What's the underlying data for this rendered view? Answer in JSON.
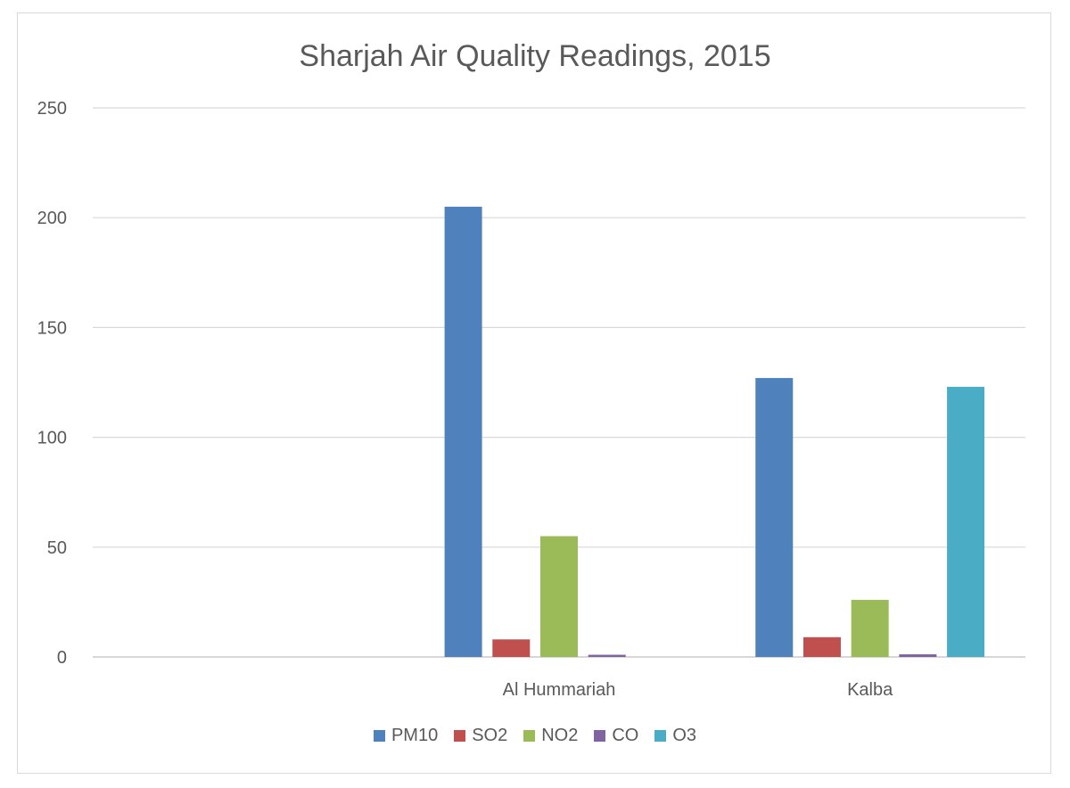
{
  "chart_data": {
    "type": "bar",
    "title": "Sharjah Air Quality Readings, 2015",
    "xlabel": "",
    "ylabel": "",
    "categories": [
      "",
      "Al Hummariah",
      "Kalba"
    ],
    "ylim": [
      0,
      250
    ],
    "yticks": [
      "0",
      "50",
      "100",
      "150",
      "200",
      "250"
    ],
    "grid": true,
    "legend_position": "bottom",
    "series": [
      {
        "name": "PM10",
        "color": "#4F81BD",
        "values": [
          null,
          205,
          127
        ]
      },
      {
        "name": "SO2",
        "color": "#C0504D",
        "values": [
          null,
          8,
          9
        ]
      },
      {
        "name": "NO2",
        "color": "#9BBB59",
        "values": [
          null,
          55,
          26
        ]
      },
      {
        "name": "CO",
        "color": "#8064A2",
        "values": [
          null,
          1,
          1.2
        ]
      },
      {
        "name": "O3",
        "color": "#4BACC6",
        "values": [
          null,
          null,
          123
        ]
      }
    ]
  }
}
